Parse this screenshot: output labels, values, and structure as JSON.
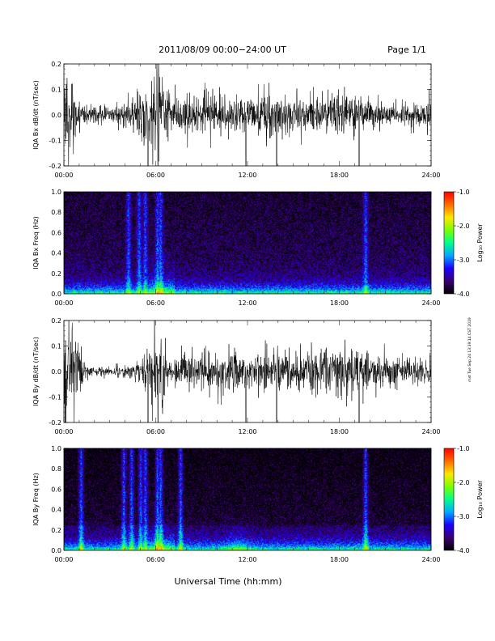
{
  "page": {
    "title": "2011/08/09   00:00−24:00 UT",
    "page_label": "Page 1/1",
    "xlabel": "Universal Time (hh:mm)",
    "side_stamp": "mst Tue Sep 24 13:39:14 CST 2019"
  },
  "colorbar": {
    "label": "Log₁₀ Power",
    "ticks": [
      "-1.0",
      "-2.0",
      "-3.0",
      "-4.0"
    ],
    "tick_values": [
      -1,
      -2,
      -3,
      -4
    ],
    "range": [
      -4,
      -1
    ],
    "colormap": [
      "#000000",
      "#3a006e",
      "#1a00ff",
      "#00a8ff",
      "#00ff8c",
      "#7aff00",
      "#ffe600",
      "#ff6a00",
      "#ff0000"
    ]
  },
  "x_axis": {
    "ticks": [
      "00:00",
      "06:00",
      "12:00",
      "18:00",
      "24:00"
    ],
    "range_hours": [
      0,
      24
    ]
  },
  "chart_data": [
    {
      "type": "line",
      "ylabel": "IQA Bx dB/dt (nT/sec)",
      "ylim": [
        -0.2,
        0.2
      ],
      "yticks": [
        "0.2",
        "0.1",
        "0.0",
        "-0.1",
        "-0.2"
      ],
      "ytick_values": [
        0.2,
        0.1,
        0.0,
        -0.1,
        -0.2
      ],
      "xlim": [
        0,
        24
      ],
      "envelope": {
        "x_hours": [
          0,
          0.5,
          1,
          1.5,
          2,
          3,
          4,
          5,
          5.5,
          6,
          6.5,
          7,
          8,
          9,
          10,
          11,
          12,
          13,
          14,
          15,
          16,
          17,
          18,
          19,
          20,
          21,
          22,
          23,
          24
        ],
        "amplitude": [
          0.2,
          0.14,
          0.06,
          0.03,
          0.04,
          0.03,
          0.05,
          0.09,
          0.09,
          0.2,
          0.1,
          0.08,
          0.09,
          0.09,
          0.08,
          0.07,
          0.07,
          0.08,
          0.09,
          0.08,
          0.07,
          0.08,
          0.08,
          0.08,
          0.05,
          0.05,
          0.04,
          0.05,
          0.07
        ]
      }
    },
    {
      "type": "heatmap",
      "ylabel": "IQA Bx Freq (Hz)",
      "ylim": [
        0.0,
        1.0
      ],
      "yticks": [
        "1.0",
        "0.8",
        "0.6",
        "0.4",
        "0.2",
        "0.0"
      ],
      "ytick_values": [
        1.0,
        0.8,
        0.6,
        0.4,
        0.2,
        0.0
      ],
      "xlim": [
        0,
        24
      ],
      "zlim": [
        -4,
        -1
      ]
    },
    {
      "type": "line",
      "ylabel": "IQA By dB/dt (nT/sec)",
      "ylim": [
        -0.2,
        0.2
      ],
      "yticks": [
        "0.2",
        "0.1",
        "0.0",
        "-0.1",
        "-0.2"
      ],
      "ytick_values": [
        0.2,
        0.1,
        0.0,
        -0.1,
        -0.2
      ],
      "xlim": [
        0,
        24
      ],
      "envelope": {
        "x_hours": [
          0,
          0.5,
          1,
          1.5,
          2,
          3,
          4,
          5,
          5.5,
          6,
          6.5,
          7,
          8,
          9,
          10,
          11,
          12,
          13,
          14,
          15,
          16,
          17,
          18,
          19,
          20,
          21,
          22,
          23,
          24
        ],
        "amplitude": [
          0.2,
          0.2,
          0.08,
          0.03,
          0.02,
          0.02,
          0.03,
          0.05,
          0.1,
          0.2,
          0.1,
          0.06,
          0.08,
          0.07,
          0.08,
          0.09,
          0.06,
          0.08,
          0.08,
          0.07,
          0.08,
          0.1,
          0.09,
          0.1,
          0.07,
          0.07,
          0.06,
          0.05,
          0.06
        ]
      }
    },
    {
      "type": "heatmap",
      "ylabel": "IQA By Freq (Hz)",
      "ylim": [
        0.0,
        1.0
      ],
      "yticks": [
        "1.0",
        "0.8",
        "0.6",
        "0.4",
        "0.2",
        "0.0"
      ],
      "ytick_values": [
        1.0,
        0.8,
        0.6,
        0.4,
        0.2,
        0.0
      ],
      "xlim": [
        0,
        24
      ],
      "zlim": [
        -4,
        -1
      ]
    }
  ]
}
